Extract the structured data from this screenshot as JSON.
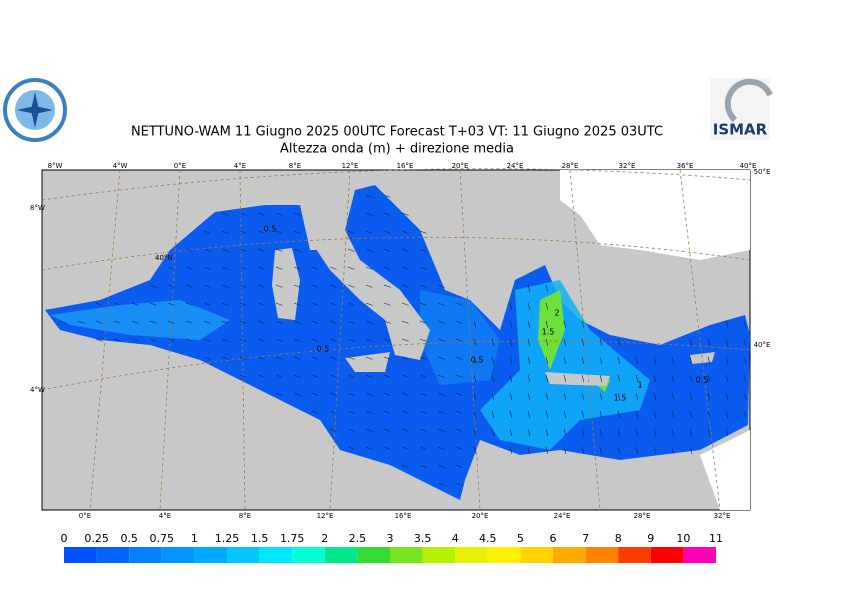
{
  "header": {
    "title": "NETTUNO-WAM  11   Giugno  2025 00UTC Forecast T+03 VT: 11   Giugno  2025 03UTC",
    "subtitle": "Altezza onda (m) + direzione media",
    "logo_text": "ISMAR"
  },
  "map": {
    "top_labels": [
      "8°W",
      "4°W",
      "0°E",
      "4°E",
      "8°E",
      "12°E",
      "16°E",
      "20°E",
      "24°E",
      "28°E",
      "32°E",
      "36°E",
      "40°E"
    ],
    "bottom_labels": [
      "0°E",
      "4°E",
      "8°E",
      "12°E",
      "16°E",
      "20°E",
      "24°E",
      "28°E",
      "32°E"
    ],
    "left_labels": [
      "8°W",
      "40°N",
      "4°W"
    ],
    "right_labels": [
      "50°E",
      "40°E"
    ],
    "contour_labels": [
      "0.5",
      "0.5",
      "0.5",
      "2",
      "1.5",
      "1",
      "1.5",
      "0.5"
    ]
  },
  "colorbar": {
    "levels": [
      0,
      0.25,
      0.5,
      0.75,
      1,
      1.25,
      1.5,
      1.75,
      2,
      2.5,
      3,
      3.5,
      4,
      4.5,
      5,
      6,
      7,
      8,
      9,
      10,
      11
    ],
    "colors": [
      "#0050ff",
      "#0064ff",
      "#0082ff",
      "#0096ff",
      "#00aaff",
      "#00c8ff",
      "#00e6ff",
      "#00ffd2",
      "#00e68c",
      "#32dc32",
      "#78e61e",
      "#b4f000",
      "#e6f000",
      "#fff000",
      "#ffd200",
      "#ffaa00",
      "#ff8200",
      "#ff3c00",
      "#ff0000",
      "#ff00b4"
    ]
  }
}
